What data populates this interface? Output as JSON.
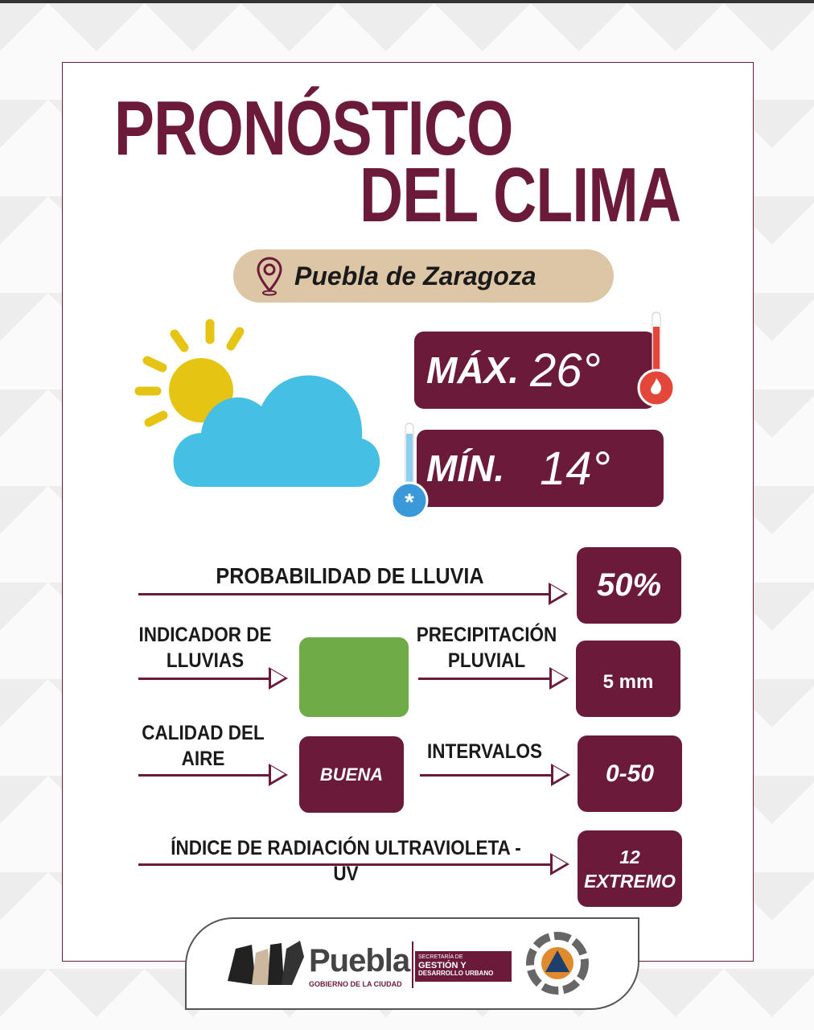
{
  "title": {
    "line1": "PRONÓSTICO",
    "line2": "DEL CLIMA"
  },
  "location": {
    "icon": "map-pin-icon",
    "name": "Puebla de Zaragoza"
  },
  "weather_icon": "partly-cloudy-icon",
  "temperature": {
    "max_label": "MÁX.",
    "max_value": "26°",
    "min_label": "MÍN.",
    "min_value": "14°"
  },
  "rain_probability": {
    "label": "PROBABILIDAD DE LLUVIA",
    "value": "50%"
  },
  "rain_indicator": {
    "label": "INDICADOR DE LLUVIAS",
    "color": "#6fab46"
  },
  "precipitation": {
    "label": "PRECIPITACIÓN PLUVIAL",
    "value": "5 mm"
  },
  "air_quality": {
    "label": "CALIDAD DEL AIRE",
    "value": "BUENA"
  },
  "intervals": {
    "label": "INTERVALOS",
    "value": "0-50"
  },
  "uv": {
    "label": "ÍNDICE DE RADIACIÓN ULTRAVIOLETA - UV",
    "value": "12",
    "level": "EXTREMO"
  },
  "footer": {
    "logo_name": "Puebla",
    "logo_sub": "GOBIERNO DE LA CIUDAD",
    "secretaria_l1": "SECRETARÍA DE",
    "secretaria_l2": "GESTIÓN Y",
    "secretaria_l3": "DESARROLLO URBANO"
  },
  "colors": {
    "primary": "#6b1a3a",
    "beige": "#dcc6a6",
    "cloud": "#45c0e4",
    "sun": "#e6c414",
    "hot": "#e5463a",
    "cold": "#3a9ad9"
  }
}
